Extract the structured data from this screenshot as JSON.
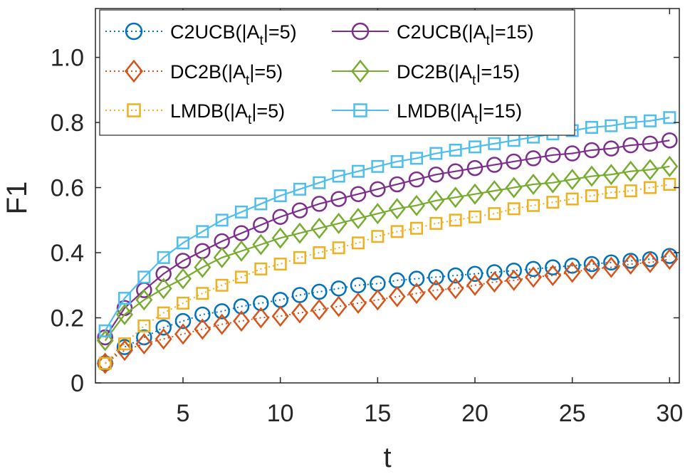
{
  "chart_data": {
    "type": "line",
    "title": "",
    "xlabel": "t",
    "ylabel": "F1",
    "xlim": [
      0.5,
      30.5
    ],
    "ylim": [
      0,
      1.15
    ],
    "xticks": [
      5,
      10,
      15,
      20,
      25,
      30
    ],
    "xtick_labels": [
      "5",
      "10",
      "15",
      "20",
      "25",
      "30"
    ],
    "yticks": [
      0,
      0.2,
      0.4,
      0.6,
      0.8,
      1.0
    ],
    "ytick_labels": [
      "0",
      "0.2",
      "0.4",
      "0.6",
      "0.8",
      "1.0"
    ],
    "grid": false,
    "legend_position": "top-left",
    "x": [
      1,
      2,
      3,
      4,
      5,
      6,
      7,
      8,
      9,
      10,
      11,
      12,
      13,
      14,
      15,
      16,
      17,
      18,
      19,
      20,
      21,
      22,
      23,
      24,
      25,
      26,
      27,
      28,
      29,
      30
    ],
    "series": [
      {
        "name": "C2UCB(|A_t|=5)",
        "legend_main": "C2UCB(|A",
        "legend_sub": "t",
        "legend_tail": "|=5)",
        "color": "#0072BD",
        "line": "dotted",
        "marker": "circle",
        "values": [
          0.06,
          0.11,
          0.14,
          0.17,
          0.19,
          0.21,
          0.22,
          0.235,
          0.245,
          0.255,
          0.27,
          0.28,
          0.29,
          0.3,
          0.305,
          0.315,
          0.32,
          0.325,
          0.33,
          0.335,
          0.34,
          0.345,
          0.35,
          0.355,
          0.36,
          0.365,
          0.37,
          0.375,
          0.38,
          0.39
        ]
      },
      {
        "name": "DC2B(|A_t|=5)",
        "legend_main": "DC2B(|A",
        "legend_sub": "t",
        "legend_tail": "|=5)",
        "color": "#D95319",
        "line": "dotted",
        "marker": "diamond",
        "values": [
          0.06,
          0.1,
          0.12,
          0.135,
          0.15,
          0.165,
          0.18,
          0.19,
          0.2,
          0.205,
          0.215,
          0.225,
          0.235,
          0.245,
          0.255,
          0.265,
          0.275,
          0.285,
          0.29,
          0.3,
          0.31,
          0.315,
          0.325,
          0.33,
          0.34,
          0.35,
          0.355,
          0.365,
          0.37,
          0.38
        ]
      },
      {
        "name": "LMDB(|A_t|=5)",
        "legend_main": "LMDB(|A",
        "legend_sub": "t",
        "legend_tail": "|=5)",
        "color": "#EDB120",
        "line": "dotted",
        "marker": "square",
        "values": [
          0.06,
          0.12,
          0.175,
          0.215,
          0.245,
          0.275,
          0.3,
          0.325,
          0.35,
          0.365,
          0.385,
          0.4,
          0.415,
          0.43,
          0.45,
          0.465,
          0.475,
          0.49,
          0.5,
          0.51,
          0.52,
          0.535,
          0.545,
          0.555,
          0.565,
          0.575,
          0.585,
          0.59,
          0.6,
          0.61
        ]
      },
      {
        "name": "C2UCB(|A_t|=15)",
        "legend_main": "C2UCB(|A",
        "legend_sub": "t",
        "legend_tail": "|=15)",
        "color": "#7E2F8E",
        "line": "solid",
        "marker": "circle",
        "values": [
          0.14,
          0.23,
          0.285,
          0.335,
          0.375,
          0.405,
          0.435,
          0.46,
          0.485,
          0.51,
          0.53,
          0.55,
          0.565,
          0.58,
          0.595,
          0.61,
          0.625,
          0.64,
          0.65,
          0.66,
          0.67,
          0.68,
          0.69,
          0.7,
          0.705,
          0.715,
          0.72,
          0.73,
          0.735,
          0.745
        ]
      },
      {
        "name": "DC2B(|A_t|=15)",
        "legend_main": "DC2B(|A",
        "legend_sub": "t",
        "legend_tail": "|=15)",
        "color": "#77AC30",
        "line": "solid",
        "marker": "diamond",
        "values": [
          0.13,
          0.21,
          0.255,
          0.29,
          0.32,
          0.355,
          0.385,
          0.405,
          0.425,
          0.445,
          0.46,
          0.475,
          0.49,
          0.505,
          0.52,
          0.535,
          0.545,
          0.56,
          0.57,
          0.58,
          0.59,
          0.6,
          0.61,
          0.615,
          0.625,
          0.635,
          0.64,
          0.65,
          0.655,
          0.665
        ]
      },
      {
        "name": "LMDB(|A_t|=15)",
        "legend_main": "LMDB(|A",
        "legend_sub": "t",
        "legend_tail": "|=15)",
        "color": "#4DBEEE",
        "line": "solid",
        "marker": "square",
        "values": [
          0.16,
          0.26,
          0.325,
          0.385,
          0.43,
          0.465,
          0.5,
          0.525,
          0.55,
          0.575,
          0.595,
          0.615,
          0.635,
          0.65,
          0.665,
          0.68,
          0.69,
          0.705,
          0.715,
          0.725,
          0.735,
          0.745,
          0.755,
          0.765,
          0.775,
          0.785,
          0.79,
          0.8,
          0.805,
          0.815
        ]
      }
    ]
  }
}
